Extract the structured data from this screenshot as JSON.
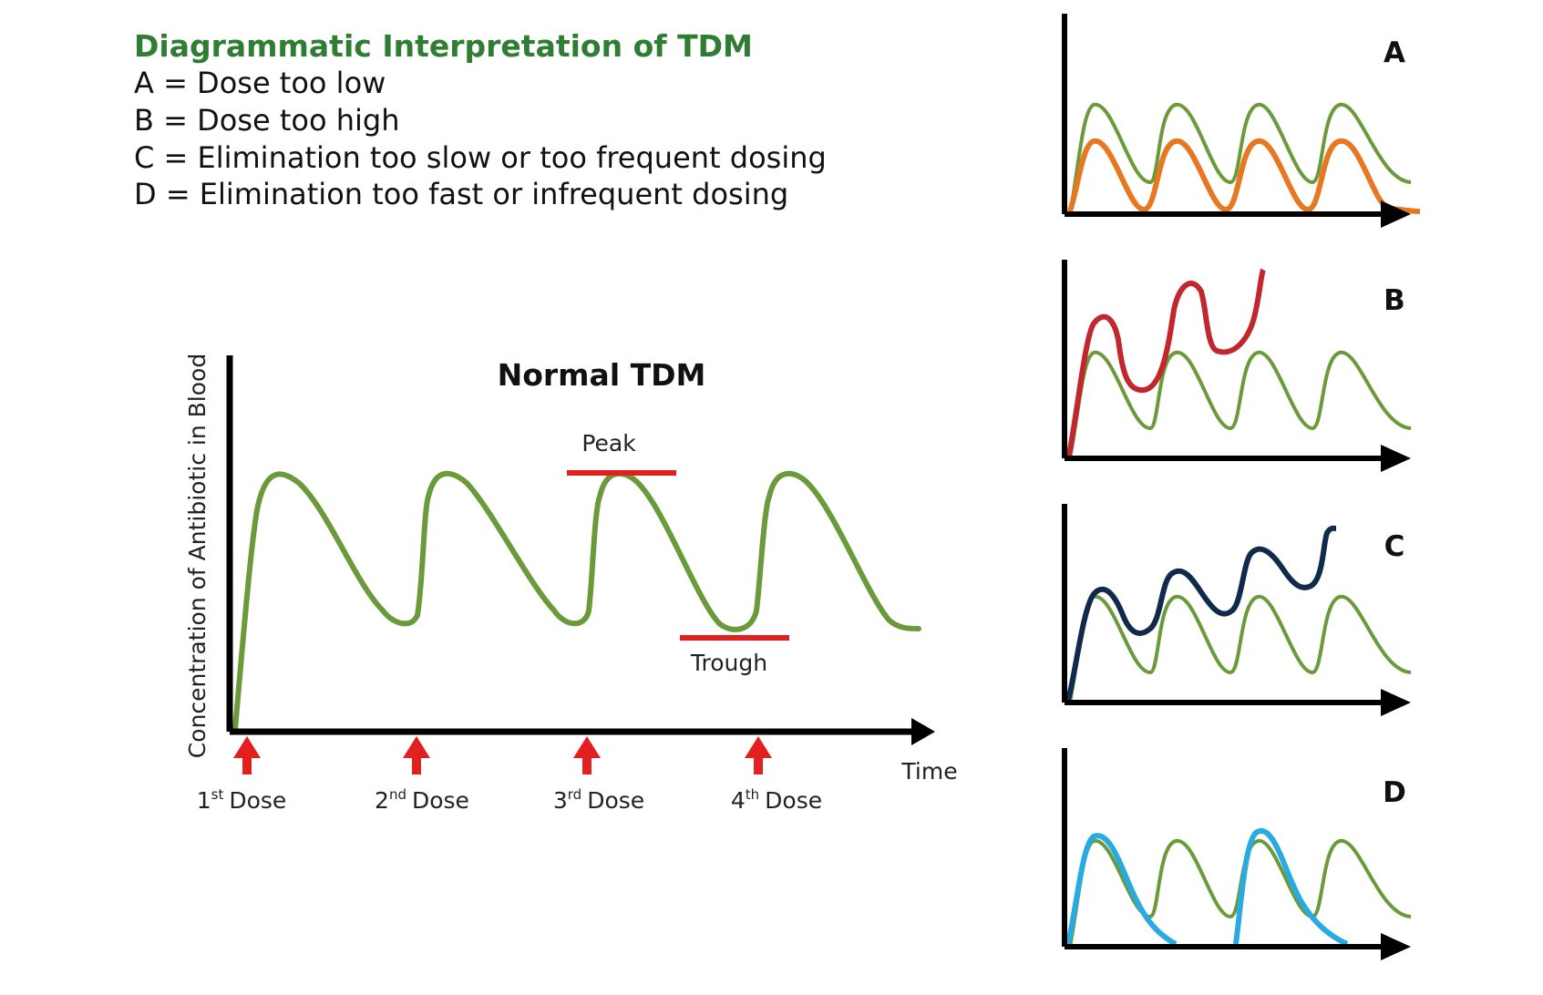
{
  "legend": {
    "title": "Diagrammatic Interpretation of TDM",
    "items": [
      "A = Dose too low",
      "B = Dose too high",
      "C = Elimination too slow or too frequent dosing",
      "D = Elimination too fast or infrequent dosing"
    ]
  },
  "main_chart": {
    "title": "Normal TDM",
    "ylabel": "Concentration of Antibiotic in Blood",
    "xlabel": "Time",
    "peak_label": "Peak",
    "trough_label": "Trough",
    "doses": [
      {
        "num": "1",
        "sup": "st",
        "word": "Dose"
      },
      {
        "num": "2",
        "sup": "nd",
        "word": "Dose"
      },
      {
        "num": "3",
        "sup": "rd",
        "word": "Dose"
      },
      {
        "num": "4",
        "sup": "th",
        "word": "Dose"
      }
    ]
  },
  "panels": [
    {
      "letter": "A",
      "meaning": "Dose too low",
      "color": "#e87722"
    },
    {
      "letter": "B",
      "meaning": "Dose too high",
      "color": "#c1272d"
    },
    {
      "letter": "C",
      "meaning": "Elimination too slow or too frequent dosing",
      "color": "#0f2a4a"
    },
    {
      "letter": "D",
      "meaning": "Elimination too fast or infrequent dosing",
      "color": "#29abe2"
    }
  ],
  "colors": {
    "title_green": "#2e7d32",
    "normal_curve": "#6a9a3a",
    "marker_red": "#e32020",
    "axis": "#000000"
  }
}
